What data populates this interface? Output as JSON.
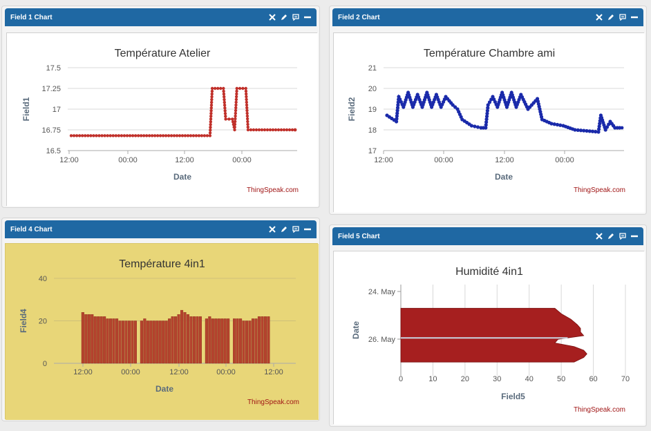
{
  "panels": [
    {
      "header": "Field 1 Chart",
      "colors": {
        "bg": "#ffffff",
        "series": "#c0302a"
      },
      "chart_data": {
        "type": "line",
        "title": "Température Atelier",
        "xlabel": "Date",
        "ylabel": "Field1",
        "ylim": [
          16.5,
          17.5
        ],
        "yticks": [
          "17.5",
          "17.25",
          "17",
          "16.75",
          "16.5"
        ],
        "xticks": [
          "12:00",
          "00:00",
          "12:00",
          "00:00"
        ],
        "credit": "ThingSpeak.com",
        "series": [
          {
            "points": [
              [
                0,
                16.68
              ],
              [
                0.3,
                16.68
              ],
              [
                0.62,
                16.68
              ],
              [
                0.63,
                17.25
              ],
              [
                0.68,
                17.25
              ],
              [
                0.69,
                16.88
              ],
              [
                0.72,
                16.88
              ],
              [
                0.73,
                16.75
              ],
              [
                0.74,
                17.25
              ],
              [
                0.78,
                17.25
              ],
              [
                0.79,
                16.75
              ],
              [
                1,
                16.75
              ]
            ]
          }
        ]
      }
    },
    {
      "header": "Field 2 Chart",
      "colors": {
        "bg": "#ffffff",
        "series": "#1a2aaa"
      },
      "chart_data": {
        "type": "line",
        "title": "Température Chambre ami",
        "xlabel": "Date",
        "ylabel": "Field2",
        "ylim": [
          17,
          21
        ],
        "yticks": [
          "21",
          "20",
          "19",
          "18",
          "17"
        ],
        "xticks": [
          "12:00",
          "00:00",
          "12:00",
          "00:00"
        ],
        "credit": "ThingSpeak.com",
        "series": [
          {
            "points": [
              [
                0,
                18.7
              ],
              [
                0.04,
                18.4
              ],
              [
                0.05,
                19.6
              ],
              [
                0.07,
                19.1
              ],
              [
                0.09,
                19.8
              ],
              [
                0.11,
                19.1
              ],
              [
                0.13,
                19.7
              ],
              [
                0.15,
                19.1
              ],
              [
                0.17,
                19.8
              ],
              [
                0.19,
                19.1
              ],
              [
                0.21,
                19.7
              ],
              [
                0.23,
                19.1
              ],
              [
                0.25,
                19.6
              ],
              [
                0.28,
                19.2
              ],
              [
                0.3,
                19.0
              ],
              [
                0.32,
                18.5
              ],
              [
                0.36,
                18.2
              ],
              [
                0.4,
                18.1
              ],
              [
                0.42,
                18.1
              ],
              [
                0.43,
                19.2
              ],
              [
                0.45,
                19.6
              ],
              [
                0.47,
                19.1
              ],
              [
                0.49,
                19.8
              ],
              [
                0.51,
                19.1
              ],
              [
                0.53,
                19.8
              ],
              [
                0.55,
                19.1
              ],
              [
                0.57,
                19.7
              ],
              [
                0.6,
                19.0
              ],
              [
                0.64,
                19.5
              ],
              [
                0.66,
                18.5
              ],
              [
                0.7,
                18.3
              ],
              [
                0.75,
                18.2
              ],
              [
                0.8,
                18.0
              ],
              [
                0.85,
                17.95
              ],
              [
                0.9,
                17.9
              ],
              [
                0.91,
                18.7
              ],
              [
                0.93,
                18.0
              ],
              [
                0.95,
                18.4
              ],
              [
                0.97,
                18.1
              ],
              [
                1,
                18.1
              ]
            ]
          }
        ]
      }
    },
    {
      "header": "Field 4 Chart",
      "colors": {
        "bg": "#e8d678",
        "series": "#b5432e"
      },
      "chart_data": {
        "type": "bar",
        "title": "Température 4in1",
        "xlabel": "Date",
        "ylabel": "Field4",
        "ylim": [
          0,
          40
        ],
        "yticks": [
          "40",
          "20",
          "0"
        ],
        "xticks": [
          "12:00",
          "00:00",
          "12:00",
          "00:00",
          "12:00"
        ],
        "credit": "ThingSpeak.com",
        "values": [
          24,
          23,
          23,
          23,
          22,
          22,
          22,
          22,
          21,
          21,
          21,
          21,
          20,
          20,
          20,
          20,
          20,
          20,
          0,
          20,
          21,
          20,
          20,
          20,
          20,
          20,
          20,
          20,
          21,
          22,
          22,
          23,
          25,
          24,
          23,
          22,
          22,
          22,
          22,
          0,
          21,
          22,
          21,
          21,
          21,
          21,
          21,
          21,
          0,
          21,
          21,
          21,
          20,
          20,
          20,
          21,
          21,
          22,
          22,
          22,
          22
        ]
      }
    },
    {
      "header": "Field 5 Chart",
      "colors": {
        "bg": "#ffffff",
        "series": "#a61f1f"
      },
      "chart_data": {
        "type": "area",
        "title": "Humidité 4in1",
        "xlabel": "Field5",
        "ylabel": "Date",
        "xlim": [
          0,
          70
        ],
        "xticks": [
          "0",
          "10",
          "20",
          "30",
          "40",
          "50",
          "60",
          "70"
        ],
        "yticks": [
          "24. May",
          "26. May"
        ],
        "credit": "ThingSpeak.com",
        "profile": [
          [
            0.26,
            48
          ],
          [
            0.32,
            50
          ],
          [
            0.38,
            53
          ],
          [
            0.44,
            55
          ],
          [
            0.48,
            56
          ],
          [
            0.52,
            56
          ],
          [
            0.56,
            57
          ],
          [
            0.6,
            49
          ],
          [
            0.64,
            48
          ],
          [
            0.68,
            54
          ],
          [
            0.72,
            57
          ],
          [
            0.76,
            58
          ],
          [
            0.8,
            57
          ],
          [
            0.85,
            54
          ]
        ]
      }
    }
  ]
}
